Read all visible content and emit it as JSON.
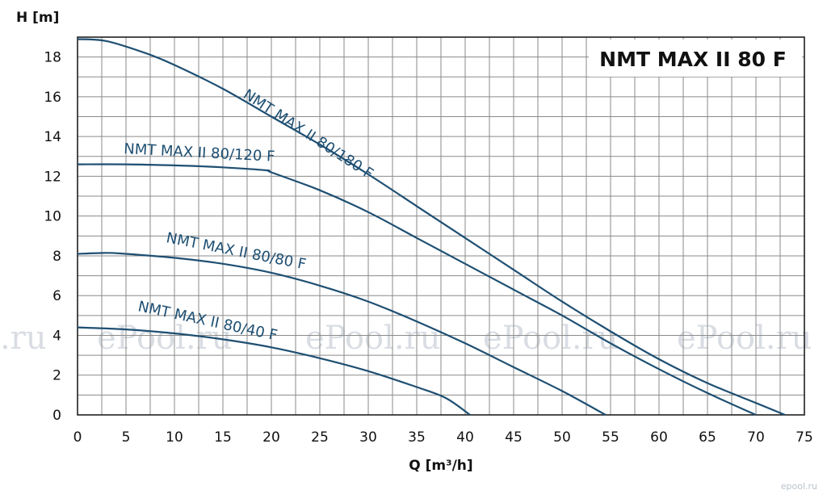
{
  "chart_data": {
    "type": "line",
    "title": "NMT MAX II 80 F",
    "xlabel": "Q [m³/h]",
    "ylabel": "H [m]",
    "xlim": [
      0,
      75
    ],
    "ylim": [
      0,
      19
    ],
    "x_ticks": [
      0,
      5,
      10,
      15,
      20,
      25,
      30,
      35,
      40,
      45,
      50,
      55,
      60,
      65,
      70,
      75
    ],
    "y_ticks": [
      0,
      2,
      4,
      6,
      8,
      10,
      12,
      14,
      16,
      18
    ],
    "grid": true,
    "line_color": "#1e4f72",
    "series": [
      {
        "name": "NMT  MAX II 80/180 F",
        "points": [
          [
            0,
            18.9
          ],
          [
            3,
            18.8
          ],
          [
            7,
            18.2
          ],
          [
            10,
            17.6
          ],
          [
            15,
            16.4
          ],
          [
            20,
            15.0
          ],
          [
            25,
            13.6
          ],
          [
            30,
            12.1
          ],
          [
            35,
            10.5
          ],
          [
            40,
            8.9
          ],
          [
            45,
            7.3
          ],
          [
            50,
            5.7
          ],
          [
            55,
            4.2
          ],
          [
            60,
            2.8
          ],
          [
            65,
            1.6
          ],
          [
            70,
            0.6
          ],
          [
            73,
            0
          ]
        ]
      },
      {
        "name": "NMT  MAX II 80/120 F",
        "points": [
          [
            0,
            12.6
          ],
          [
            5,
            12.6
          ],
          [
            10,
            12.55
          ],
          [
            15,
            12.45
          ],
          [
            19.5,
            12.3
          ],
          [
            20,
            12.2
          ],
          [
            25,
            11.3
          ],
          [
            30,
            10.2
          ],
          [
            35,
            8.9
          ],
          [
            40,
            7.6
          ],
          [
            45,
            6.3
          ],
          [
            50,
            5.0
          ],
          [
            55,
            3.6
          ],
          [
            60,
            2.3
          ],
          [
            65,
            1.1
          ],
          [
            70,
            0
          ]
        ]
      },
      {
        "name": "NMT  MAX II 80/80 F",
        "points": [
          [
            0,
            8.1
          ],
          [
            3,
            8.15
          ],
          [
            5,
            8.1
          ],
          [
            10,
            7.9
          ],
          [
            15,
            7.6
          ],
          [
            20,
            7.15
          ],
          [
            25,
            6.5
          ],
          [
            30,
            5.7
          ],
          [
            35,
            4.7
          ],
          [
            40,
            3.6
          ],
          [
            45,
            2.4
          ],
          [
            50,
            1.2
          ],
          [
            54.5,
            0
          ]
        ]
      },
      {
        "name": "NMT  MAX II 80/40 F",
        "points": [
          [
            0,
            4.4
          ],
          [
            5,
            4.3
          ],
          [
            10,
            4.1
          ],
          [
            15,
            3.8
          ],
          [
            20,
            3.4
          ],
          [
            25,
            2.85
          ],
          [
            30,
            2.2
          ],
          [
            35,
            1.4
          ],
          [
            38,
            0.85
          ],
          [
            40.5,
            0
          ]
        ]
      }
    ]
  },
  "watermarks": [
    "ePool.ru",
    "ePool.ru",
    "ePool.ru",
    "ePool.ru",
    ".ru"
  ],
  "corner_mark": "epool.ru"
}
